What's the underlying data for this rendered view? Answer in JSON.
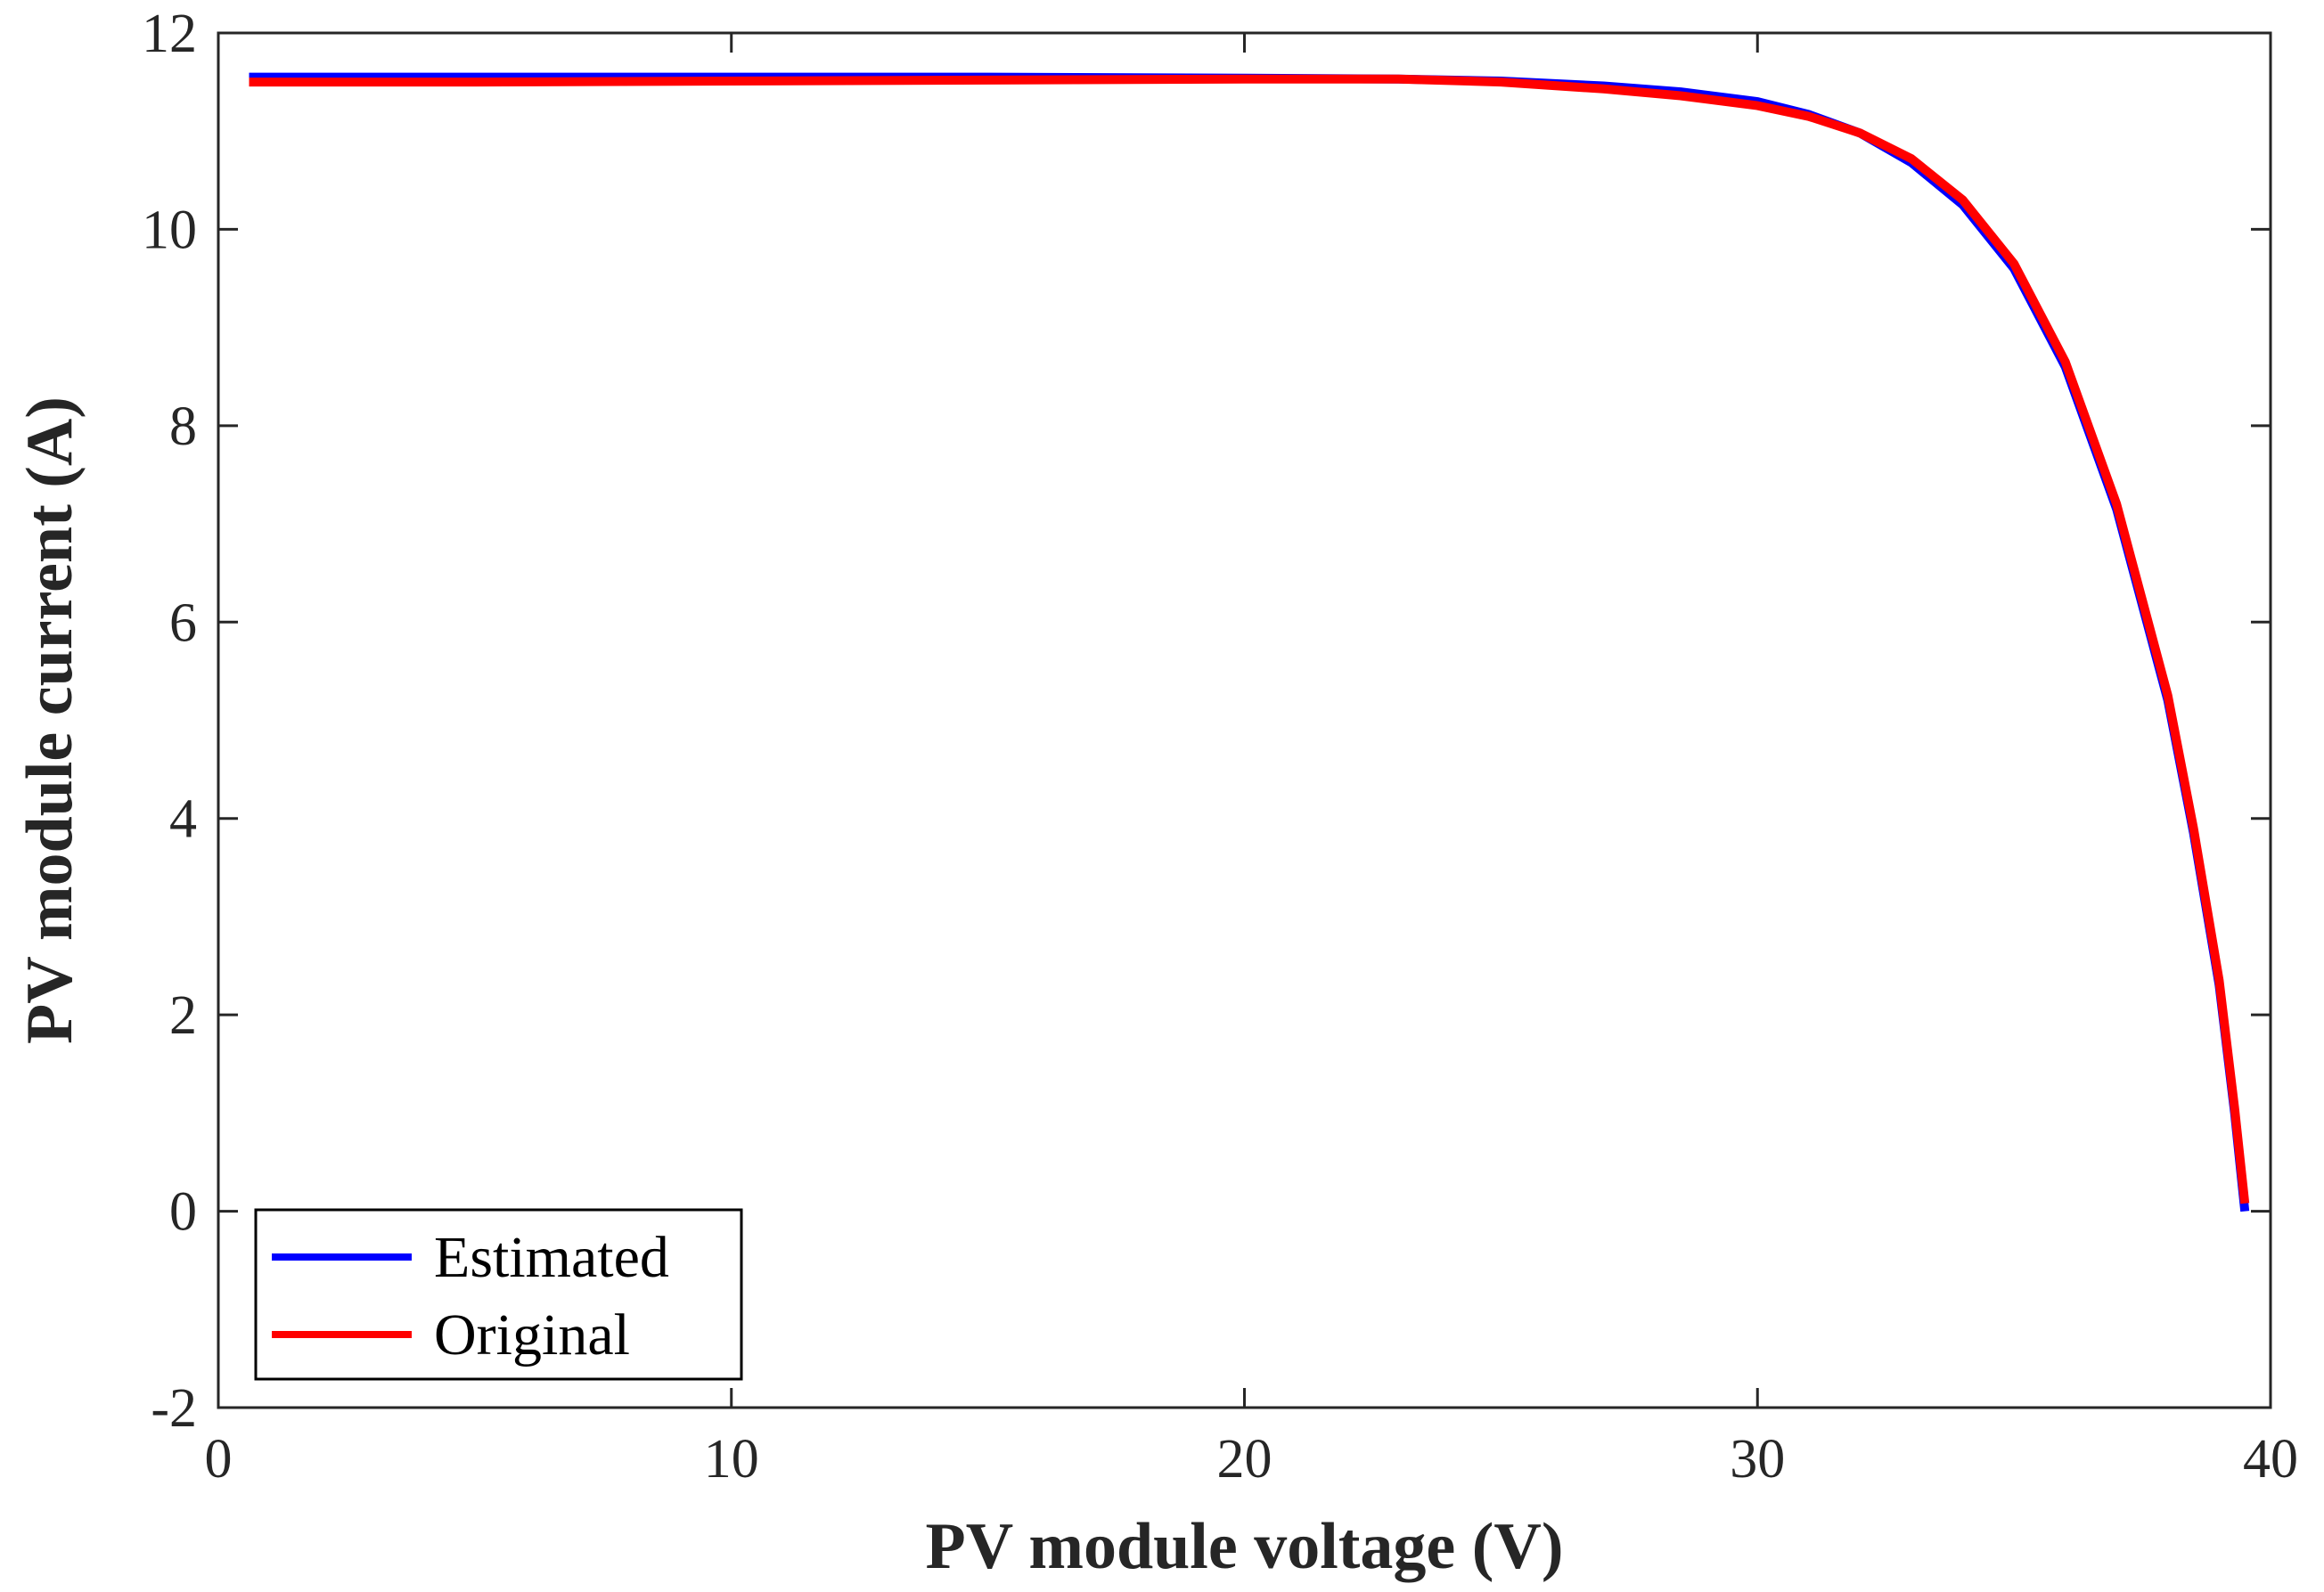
{
  "chart_data": {
    "type": "line",
    "title": "",
    "xlabel": "PV module voltage (V)",
    "ylabel": "PV module current (A)",
    "xlim": [
      0,
      40
    ],
    "ylim": [
      -2,
      12
    ],
    "xticks": [
      0,
      10,
      20,
      30,
      40
    ],
    "yticks": [
      -2,
      0,
      2,
      4,
      6,
      8,
      10,
      12
    ],
    "xtick_labels": [
      "0",
      "10",
      "20",
      "30",
      "40"
    ],
    "ytick_labels": [
      "-2",
      "0",
      "2",
      "4",
      "6",
      "8",
      "10",
      "12"
    ],
    "grid": false,
    "legend_position": "bottom-left",
    "series": [
      {
        "name": "Estimated",
        "color": "#0000ff",
        "x": [
          0.6,
          5,
          10,
          15,
          20,
          23,
          25,
          27,
          28.5,
          30,
          31,
          32,
          33,
          34,
          35,
          36,
          37,
          38,
          38.5,
          39,
          39.3,
          39.5
        ],
        "y": [
          11.55,
          11.55,
          11.55,
          11.55,
          11.54,
          11.53,
          11.51,
          11.46,
          11.4,
          11.3,
          11.17,
          10.98,
          10.68,
          10.25,
          9.6,
          8.6,
          7.15,
          5.2,
          3.85,
          2.3,
          1.0,
          0.0
        ]
      },
      {
        "name": "Original",
        "color": "#ff0000",
        "x": [
          0.6,
          5,
          10,
          15,
          20,
          23,
          25,
          27,
          28.5,
          30,
          31,
          32,
          33,
          34,
          35,
          36,
          37,
          38,
          38.5,
          39,
          39.3,
          39.5
        ],
        "y": [
          11.5,
          11.5,
          11.51,
          11.52,
          11.53,
          11.53,
          11.5,
          11.43,
          11.36,
          11.26,
          11.15,
          10.98,
          10.72,
          10.3,
          9.65,
          8.65,
          7.2,
          5.25,
          3.9,
          2.35,
          1.05,
          0.08
        ]
      }
    ]
  }
}
